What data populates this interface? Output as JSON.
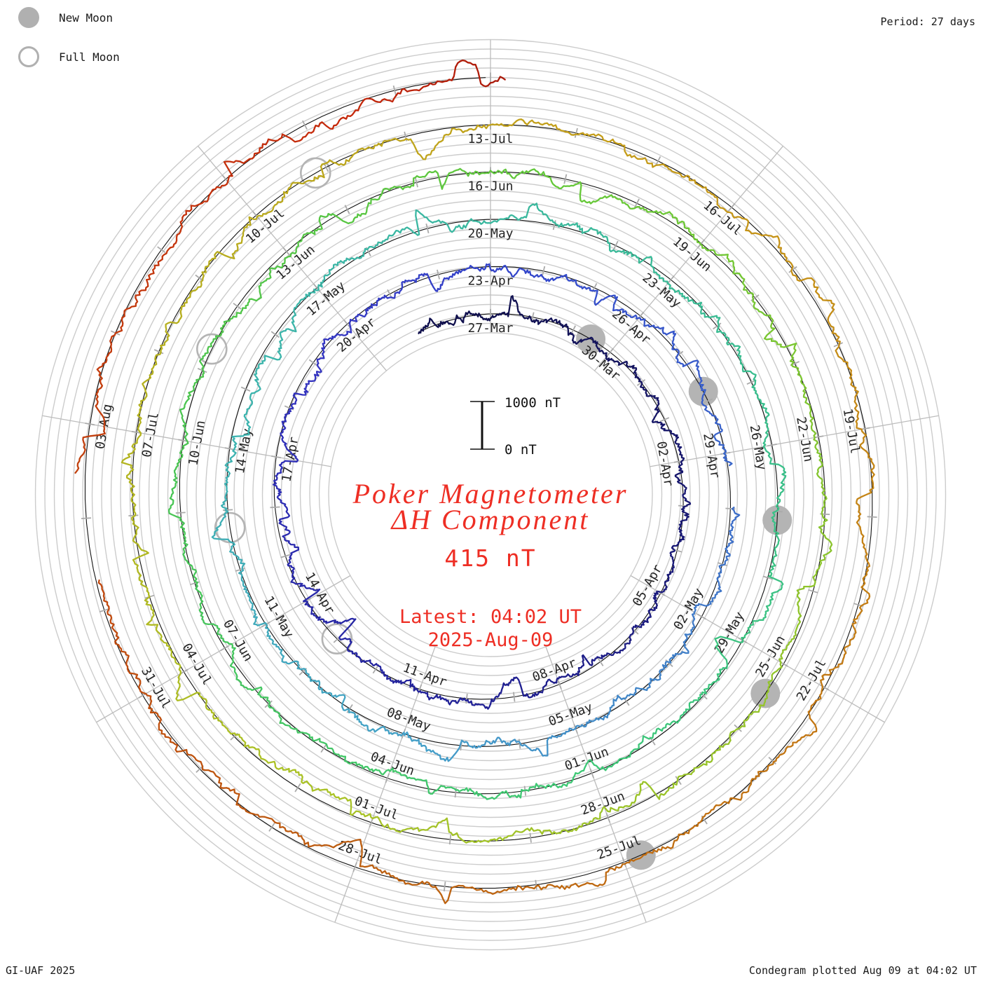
{
  "header": {
    "period_label": "Period: 27 days"
  },
  "legend": {
    "new_moon_label": "New Moon",
    "full_moon_label": "Full Moon"
  },
  "footer": {
    "credit": "GI-UAF 2025",
    "plotted": "Condegram plotted Aug 09 at 04:02 UT"
  },
  "center_text": {
    "title_line1": "Poker Magnetometer",
    "title_line2": "ΔH Component",
    "range": "415 nT",
    "latest_line1": "Latest: 04:02 UT",
    "latest_line2": "2025-Aug-09",
    "color": "#ee2e24"
  },
  "scale_bar": {
    "top": "1000 nT",
    "bottom": "0 nT"
  },
  "chart_data": {
    "type": "line",
    "subtype": "condegram-spiral",
    "title": "Poker Magnetometer ΔH Component",
    "station": "Poker",
    "component": "ΔH",
    "range_nT": "415 nT",
    "latest": "2025-Aug-09 04:02 UT",
    "period_days": 27,
    "revolutions": 5,
    "ring_scale_nT": 1000,
    "grid_step_nT": 200,
    "total_days": 135.17,
    "start_day_offset": -1.8,
    "date_labels": [
      {
        "day": 0,
        "text": "27-Mar"
      },
      {
        "day": 3,
        "text": "30-Mar"
      },
      {
        "day": 6,
        "text": "02-Apr"
      },
      {
        "day": 9,
        "text": "05-Apr"
      },
      {
        "day": 12,
        "text": "08-Apr"
      },
      {
        "day": 15,
        "text": "11-Apr"
      },
      {
        "day": 18,
        "text": "14-Apr"
      },
      {
        "day": 21,
        "text": "17-Apr"
      },
      {
        "day": 24,
        "text": "20-Apr"
      },
      {
        "day": 27,
        "text": "23-Apr"
      },
      {
        "day": 30,
        "text": "26-Apr"
      },
      {
        "day": 33,
        "text": "29-Apr"
      },
      {
        "day": 36,
        "text": "02-May"
      },
      {
        "day": 39,
        "text": "05-May"
      },
      {
        "day": 42,
        "text": "08-May"
      },
      {
        "day": 45,
        "text": "11-May"
      },
      {
        "day": 48,
        "text": "14-May"
      },
      {
        "day": 51,
        "text": "17-May"
      },
      {
        "day": 54,
        "text": "20-May"
      },
      {
        "day": 57,
        "text": "23-May"
      },
      {
        "day": 60,
        "text": "26-May"
      },
      {
        "day": 63,
        "text": "29-May"
      },
      {
        "day": 66,
        "text": "01-Jun"
      },
      {
        "day": 69,
        "text": "04-Jun"
      },
      {
        "day": 72,
        "text": "07-Jun"
      },
      {
        "day": 75,
        "text": "10-Jun"
      },
      {
        "day": 78,
        "text": "13-Jun"
      },
      {
        "day": 81,
        "text": "16-Jun"
      },
      {
        "day": 84,
        "text": "19-Jun"
      },
      {
        "day": 87,
        "text": "22-Jun"
      },
      {
        "day": 90,
        "text": "25-Jun"
      },
      {
        "day": 93,
        "text": "28-Jun"
      },
      {
        "day": 96,
        "text": "01-Jul"
      },
      {
        "day": 99,
        "text": "04-Jul"
      },
      {
        "day": 102,
        "text": "07-Jul"
      },
      {
        "day": 105,
        "text": "10-Jul"
      },
      {
        "day": 108,
        "text": "13-Jul"
      },
      {
        "day": 111,
        "text": "16-Jul"
      },
      {
        "day": 114,
        "text": "19-Jul"
      },
      {
        "day": 117,
        "text": "22-Jul"
      },
      {
        "day": 120,
        "text": "25-Jul"
      },
      {
        "day": 123,
        "text": "28-Jul"
      },
      {
        "day": 126,
        "text": "31-Jul"
      },
      {
        "day": 129,
        "text": "03-Aug"
      }
    ],
    "new_moon_days": [
      2.46,
      31.81,
      61.13,
      90.44,
      119.8
    ],
    "full_moon_days": [
      17.01,
      46.71,
      76.32,
      105.86
    ],
    "moon_marker_color": "#b4b4b4",
    "grid_color": "#cccccc",
    "spoke_color": "#bcbcbc",
    "tick_color": "#aaaaaa",
    "baseline_color": "#111111",
    "trace_color_stops": [
      [
        0.0,
        "#10104e"
      ],
      [
        0.55,
        "#22229a"
      ],
      [
        0.85,
        "#3333c0"
      ],
      [
        1.05,
        "#3349cc"
      ],
      [
        1.3,
        "#3f74c8"
      ],
      [
        1.55,
        "#44a0c8"
      ],
      [
        1.8,
        "#3db4ae"
      ],
      [
        2.1,
        "#39ba97"
      ],
      [
        2.45,
        "#3ec876"
      ],
      [
        2.8,
        "#4bc44f"
      ],
      [
        3.05,
        "#66c838"
      ],
      [
        3.3,
        "#8fc42c"
      ],
      [
        3.6,
        "#abc226"
      ],
      [
        3.85,
        "#b7ad1e"
      ],
      [
        4.05,
        "#c59e1a"
      ],
      [
        4.3,
        "#c47d14"
      ],
      [
        4.55,
        "#bc5f10"
      ],
      [
        4.75,
        "#c2430e"
      ],
      [
        4.95,
        "#c5280b"
      ],
      [
        5.02,
        "#a31408"
      ]
    ],
    "noise": {
      "seed": 1360271,
      "points_per_day": 40,
      "gaps": [
        [
          33.25,
          33.95
        ],
        [
          127.35,
          128.45
        ]
      ]
    }
  }
}
